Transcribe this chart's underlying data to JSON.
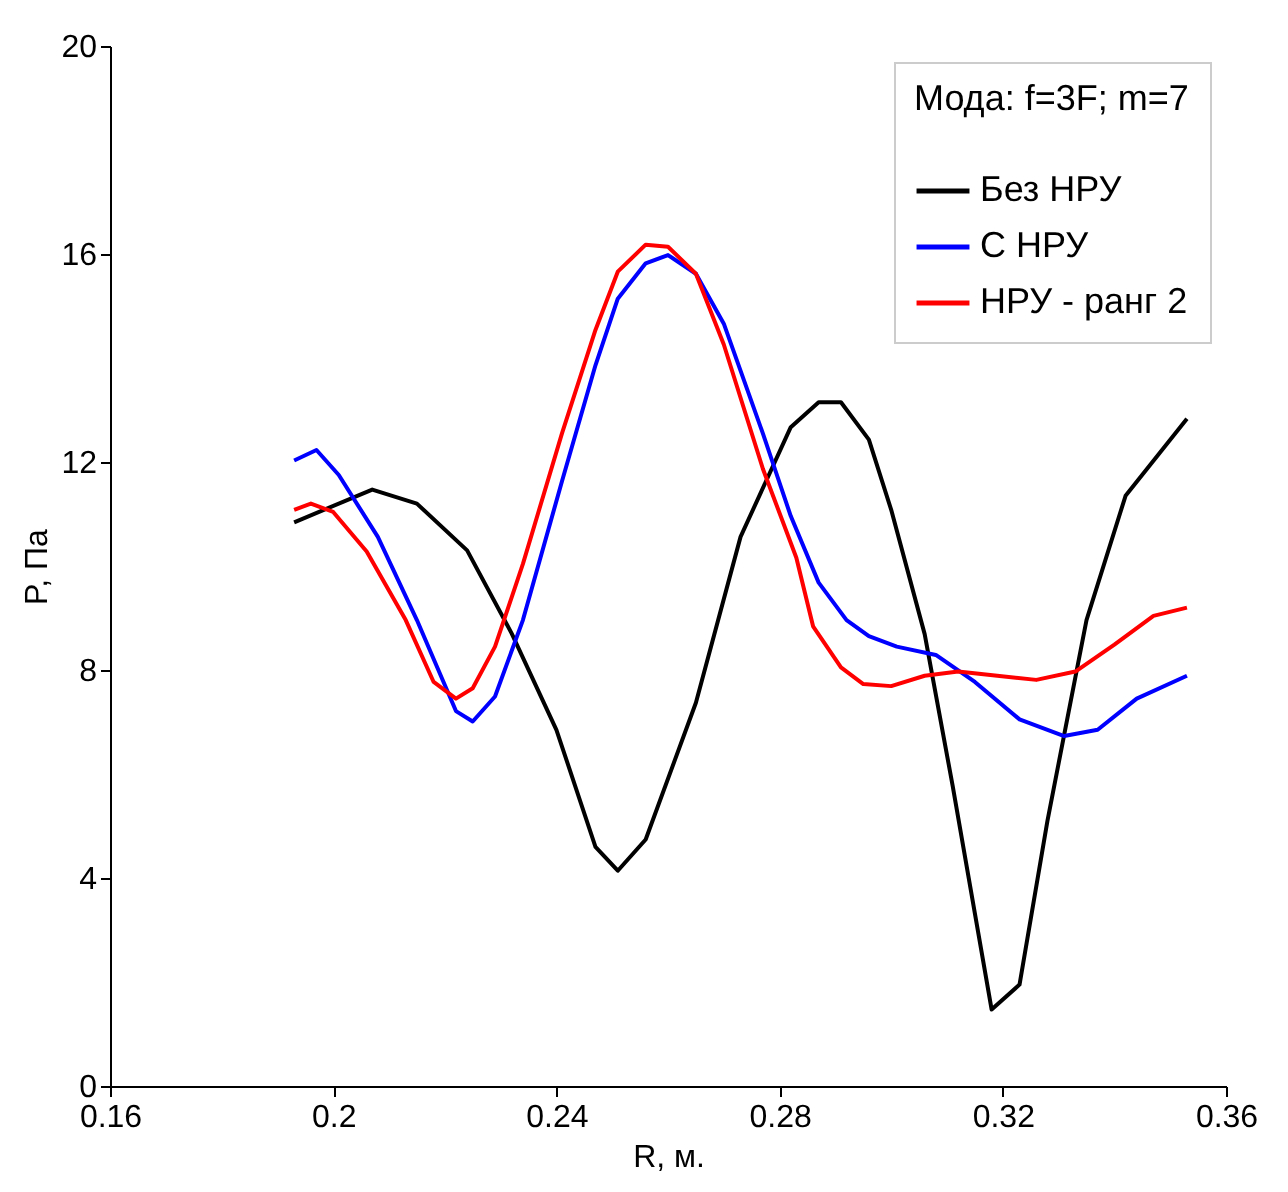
{
  "chart_data": {
    "type": "line",
    "xlabel": "R, м.",
    "ylabel": "P, Па",
    "legend_title": "Мода: f=3F; m=7",
    "legend": "top right",
    "grid": false,
    "xlim": [
      0.16,
      0.36
    ],
    "xticks": [
      0.16,
      0.2,
      0.24,
      0.28,
      0.32,
      0.36
    ],
    "ylim": [
      0,
      20
    ],
    "yticks": [
      0,
      4,
      8,
      12,
      16,
      20
    ],
    "series": [
      {
        "name": "Без НРУ",
        "color": "#000000",
        "x": [
          0.193,
          0.207,
          0.215,
          0.224,
          0.232,
          0.24,
          0.247,
          0.251,
          0.256,
          0.265,
          0.273,
          0.282,
          0.287,
          0.291,
          0.296,
          0.3,
          0.306,
          0.311,
          0.318,
          0.323,
          0.328,
          0.335,
          0.342,
          0.353
        ],
        "values": [
          10.84,
          11.47,
          11.2,
          10.3,
          8.7,
          6.85,
          4.6,
          4.14,
          4.74,
          7.37,
          10.56,
          12.67,
          13.15,
          13.15,
          12.43,
          11.08,
          8.69,
          5.78,
          1.47,
          1.95,
          5.1,
          8.96,
          11.35,
          12.83
        ]
      },
      {
        "name": "С НРУ",
        "color": "#0000ff",
        "x": [
          0.193,
          0.197,
          0.201,
          0.208,
          0.215,
          0.222,
          0.225,
          0.229,
          0.234,
          0.241,
          0.247,
          0.251,
          0.256,
          0.26,
          0.265,
          0.27,
          0.277,
          0.282,
          0.287,
          0.292,
          0.296,
          0.301,
          0.308,
          0.315,
          0.323,
          0.331,
          0.337,
          0.344,
          0.353
        ],
        "values": [
          12.03,
          12.23,
          11.75,
          10.56,
          8.96,
          7.21,
          7.01,
          7.49,
          8.96,
          11.63,
          13.86,
          15.14,
          15.82,
          15.98,
          15.62,
          14.66,
          12.55,
          10.96,
          9.68,
          8.96,
          8.65,
          8.45,
          8.29,
          7.77,
          7.05,
          6.73,
          6.85,
          7.45,
          7.89
        ]
      },
      {
        "name": "НРУ - ранг 2",
        "color": "#ff0000",
        "x": [
          0.193,
          0.196,
          0.2,
          0.206,
          0.213,
          0.218,
          0.222,
          0.225,
          0.229,
          0.234,
          0.241,
          0.247,
          0.251,
          0.256,
          0.26,
          0.265,
          0.27,
          0.277,
          0.283,
          0.286,
          0.291,
          0.295,
          0.3,
          0.306,
          0.312,
          0.319,
          0.326,
          0.333,
          0.34,
          0.347,
          0.353
        ],
        "values": [
          11.08,
          11.2,
          11.04,
          10.28,
          8.96,
          7.77,
          7.45,
          7.65,
          8.45,
          10.04,
          12.55,
          14.54,
          15.66,
          16.18,
          16.14,
          15.62,
          14.26,
          11.87,
          10.16,
          8.84,
          8.05,
          7.73,
          7.69,
          7.89,
          7.97,
          7.89,
          7.81,
          7.97,
          8.49,
          9.04,
          9.2
        ]
      }
    ]
  }
}
